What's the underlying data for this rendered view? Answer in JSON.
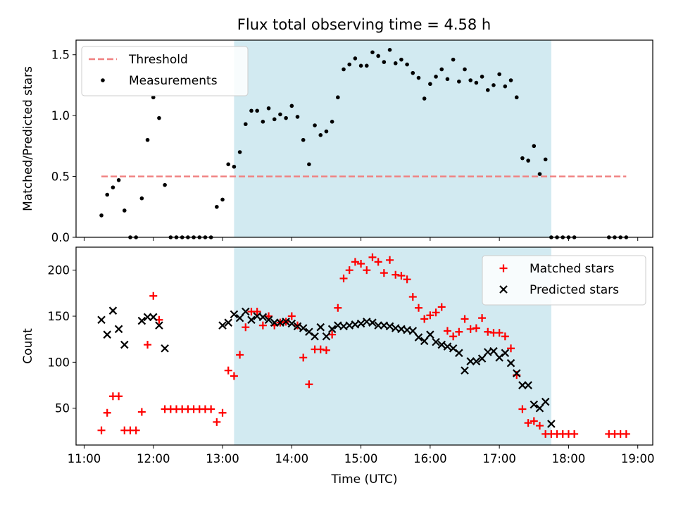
{
  "figure_title": "Flux total observing time = 4.58 h",
  "colors": {
    "shade": "#add8e6",
    "threshold": "#f08080",
    "matched": "#ff0000",
    "predicted": "#000000",
    "measurement": "#000000"
  },
  "chart_data": [
    {
      "type": "scatter",
      "title": "Flux total observing time = 4.58 h",
      "ylabel": "Matched/Predicted stars",
      "xlabel": "",
      "xlim": [
        "10:53",
        "19:13"
      ],
      "ylim": [
        0,
        1.62
      ],
      "y_ticks": [
        0.0,
        0.5,
        1.0,
        1.5
      ],
      "y_tick_labels": [
        "0.0",
        "0.5",
        "1.0",
        "1.5"
      ],
      "grid": false,
      "legend_position": "top-left",
      "shaded_region": [
        "13:10",
        "17:45"
      ],
      "series": [
        {
          "name": "Threshold",
          "style": "dashed-line",
          "x": [
            "11:15",
            "18:50"
          ],
          "y": [
            0.5,
            0.5
          ]
        },
        {
          "name": "Measurements",
          "style": "dots",
          "x": [
            "11:15",
            "11:20",
            "11:25",
            "11:30",
            "11:35",
            "11:40",
            "11:45",
            "11:50",
            "11:55",
            "12:00",
            "12:05",
            "12:10",
            "12:15",
            "12:20",
            "12:25",
            "12:30",
            "12:35",
            "12:40",
            "12:45",
            "12:50",
            "12:55",
            "13:00",
            "13:05",
            "13:10",
            "13:15",
            "13:20",
            "13:25",
            "13:30",
            "13:35",
            "13:40",
            "13:45",
            "13:50",
            "13:55",
            "14:00",
            "14:05",
            "14:10",
            "14:15",
            "14:20",
            "14:25",
            "14:30",
            "14:35",
            "14:40",
            "14:45",
            "14:50",
            "14:55",
            "15:00",
            "15:05",
            "15:10",
            "15:15",
            "15:20",
            "15:25",
            "15:30",
            "15:35",
            "15:40",
            "15:45",
            "15:50",
            "15:55",
            "16:00",
            "16:05",
            "16:10",
            "16:15",
            "16:20",
            "16:25",
            "16:30",
            "16:35",
            "16:40",
            "16:45",
            "16:50",
            "16:55",
            "17:00",
            "17:05",
            "17:10",
            "17:15",
            "17:20",
            "17:25",
            "17:30",
            "17:35",
            "17:40",
            "17:45",
            "17:50",
            "17:55",
            "18:00",
            "18:05",
            "18:35",
            "18:40",
            "18:45",
            "18:50"
          ],
          "y": [
            0.18,
            0.35,
            0.41,
            0.47,
            0.22,
            0.0,
            0.0,
            0.32,
            0.8,
            1.15,
            0.98,
            0.43,
            0.0,
            0.0,
            0.0,
            0.0,
            0.0,
            0.0,
            0.0,
            0.0,
            0.25,
            0.31,
            0.6,
            0.58,
            0.7,
            0.93,
            1.04,
            1.04,
            0.95,
            1.06,
            0.97,
            1.01,
            0.98,
            1.08,
            0.99,
            0.8,
            0.6,
            0.92,
            0.84,
            0.87,
            0.95,
            1.15,
            1.38,
            1.42,
            1.47,
            1.41,
            1.41,
            1.52,
            1.49,
            1.44,
            1.54,
            1.43,
            1.46,
            1.42,
            1.35,
            1.31,
            1.14,
            1.26,
            1.32,
            1.38,
            1.3,
            1.46,
            1.28,
            1.38,
            1.29,
            1.27,
            1.32,
            1.21,
            1.25,
            1.34,
            1.24,
            1.29,
            1.15,
            0.65,
            0.63,
            0.75,
            0.52,
            0.64,
            0.0,
            0.0,
            0.0,
            0.0,
            0.0,
            0.0,
            0.0,
            0.0,
            0.0
          ]
        }
      ]
    },
    {
      "type": "scatter",
      "title": "",
      "ylabel": "Count",
      "xlabel": "Time (UTC)",
      "xlim": [
        "10:53",
        "19:13"
      ],
      "ylim": [
        10,
        225
      ],
      "x_ticks": [
        "11:00",
        "12:00",
        "13:00",
        "14:00",
        "15:00",
        "16:00",
        "17:00",
        "18:00",
        "19:00"
      ],
      "x_tick_labels": [
        "11:00",
        "12:00",
        "13:00",
        "14:00",
        "15:00",
        "16:00",
        "17:00",
        "18:00",
        "19:00"
      ],
      "y_ticks": [
        50,
        100,
        150,
        200
      ],
      "y_tick_labels": [
        "50",
        "100",
        "150",
        "200"
      ],
      "grid": false,
      "legend_position": "top-right",
      "shaded_region": [
        "13:10",
        "17:45"
      ],
      "series": [
        {
          "name": "Matched stars",
          "marker": "+",
          "x": [
            "11:15",
            "11:20",
            "11:25",
            "11:30",
            "11:35",
            "11:40",
            "11:45",
            "11:50",
            "11:55",
            "12:00",
            "12:05",
            "12:10",
            "12:15",
            "12:20",
            "12:25",
            "12:30",
            "12:35",
            "12:40",
            "12:45",
            "12:50",
            "12:55",
            "13:00",
            "13:05",
            "13:10",
            "13:15",
            "13:20",
            "13:25",
            "13:30",
            "13:35",
            "13:40",
            "13:45",
            "13:50",
            "13:55",
            "14:00",
            "14:05",
            "14:10",
            "14:15",
            "14:20",
            "14:25",
            "14:30",
            "14:35",
            "14:40",
            "14:45",
            "14:50",
            "14:55",
            "15:00",
            "15:05",
            "15:10",
            "15:15",
            "15:20",
            "15:25",
            "15:30",
            "15:35",
            "15:40",
            "15:45",
            "15:50",
            "15:55",
            "16:00",
            "16:05",
            "16:10",
            "16:15",
            "16:20",
            "16:25",
            "16:30",
            "16:35",
            "16:40",
            "16:45",
            "16:50",
            "16:55",
            "17:00",
            "17:05",
            "17:10",
            "17:15",
            "17:20",
            "17:25",
            "17:30",
            "17:35",
            "17:40",
            "17:45",
            "17:50",
            "17:55",
            "18:00",
            "18:05",
            "18:35",
            "18:40",
            "18:45",
            "18:50"
          ],
          "y": [
            26,
            45,
            63,
            63,
            26,
            26,
            26,
            46,
            119,
            172,
            146,
            49,
            49,
            49,
            49,
            49,
            49,
            49,
            49,
            49,
            35,
            45,
            91,
            85,
            108,
            138,
            155,
            155,
            140,
            150,
            140,
            143,
            144,
            150,
            140,
            105,
            76,
            114,
            114,
            113,
            130,
            159,
            191,
            200,
            209,
            207,
            200,
            214,
            209,
            197,
            211,
            195,
            194,
            190,
            171,
            159,
            147,
            151,
            154,
            160,
            134,
            128,
            133,
            147,
            136,
            137,
            148,
            133,
            132,
            132,
            128,
            115,
            86,
            49,
            34,
            36,
            31,
            22,
            22,
            22,
            22,
            22,
            22,
            22,
            22,
            22,
            22
          ]
        },
        {
          "name": "Predicted stars",
          "marker": "x",
          "x": [
            "11:15",
            "11:20",
            "11:25",
            "11:30",
            "11:35",
            "11:50",
            "11:55",
            "12:00",
            "12:05",
            "12:10",
            "13:00",
            "13:05",
            "13:10",
            "13:15",
            "13:20",
            "13:25",
            "13:30",
            "13:35",
            "13:40",
            "13:45",
            "13:50",
            "13:55",
            "14:00",
            "14:05",
            "14:10",
            "14:15",
            "14:20",
            "14:25",
            "14:30",
            "14:35",
            "14:40",
            "14:45",
            "14:50",
            "14:55",
            "15:00",
            "15:05",
            "15:10",
            "15:15",
            "15:20",
            "15:25",
            "15:30",
            "15:35",
            "15:40",
            "15:45",
            "15:50",
            "15:55",
            "16:00",
            "16:05",
            "16:10",
            "16:15",
            "16:20",
            "16:25",
            "16:30",
            "16:35",
            "16:40",
            "16:45",
            "16:50",
            "16:55",
            "17:00",
            "17:05",
            "17:10",
            "17:15",
            "17:20",
            "17:25",
            "17:30",
            "17:35",
            "17:40",
            "17:45"
          ],
          "y": [
            146,
            130,
            156,
            136,
            119,
            145,
            149,
            149,
            140,
            115,
            140,
            143,
            152,
            148,
            155,
            146,
            150,
            149,
            146,
            143,
            143,
            144,
            142,
            139,
            137,
            133,
            128,
            138,
            128,
            136,
            140,
            139,
            140,
            141,
            142,
            144,
            143,
            140,
            140,
            139,
            137,
            136,
            135,
            134,
            127,
            123,
            130,
            122,
            119,
            117,
            115,
            110,
            91,
            101,
            101,
            104,
            111,
            112,
            105,
            110,
            99,
            88,
            75,
            75,
            54,
            50,
            57,
            33
          ]
        }
      ]
    }
  ]
}
